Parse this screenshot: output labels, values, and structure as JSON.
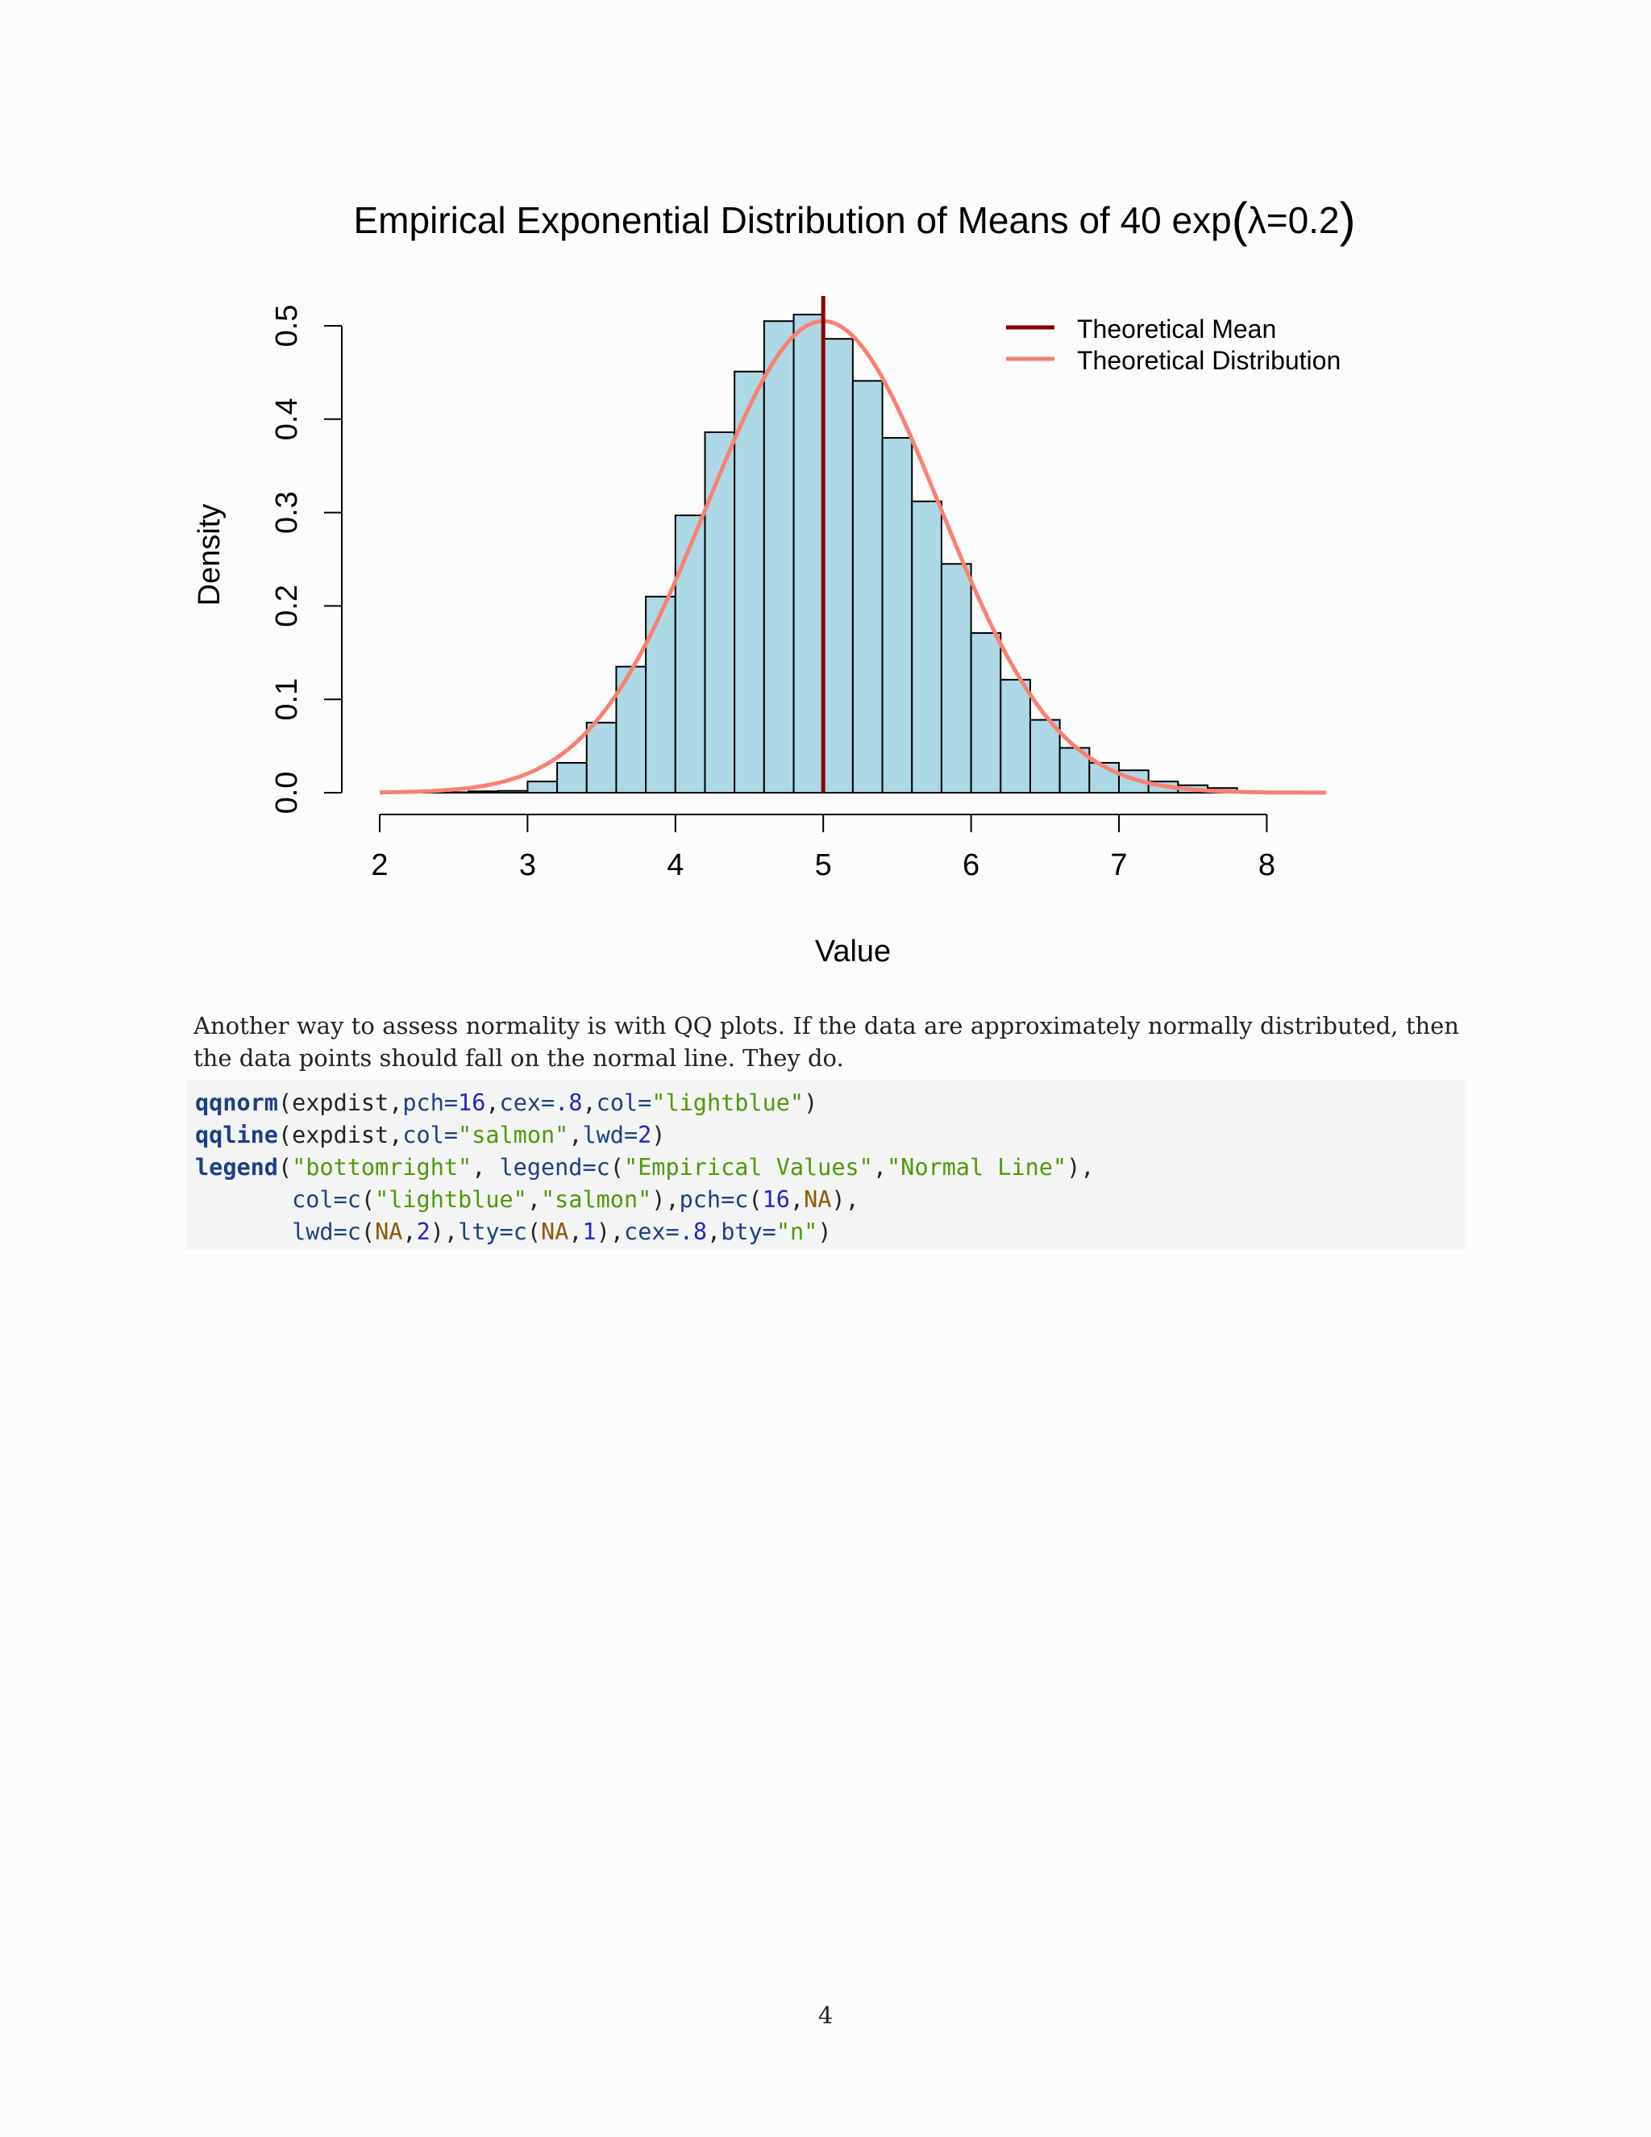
{
  "chart_data": {
    "type": "bar",
    "title_prefix": "Empirical Exponential Distribution of Means of 40 exp",
    "title_paren_open": "(",
    "title_lambda": "λ=0.2",
    "title_paren_close": ")",
    "xlabel": "Value",
    "ylabel": "Density",
    "xlim": [
      2,
      8.4
    ],
    "ylim": [
      0,
      0.5
    ],
    "x_ticks": [
      2,
      3,
      4,
      5,
      6,
      7,
      8
    ],
    "y_ticks": [
      0.0,
      0.1,
      0.2,
      0.3,
      0.4,
      0.5
    ],
    "y_tick_labels": [
      "0.0",
      "0.1",
      "0.2",
      "0.3",
      "0.4",
      "0.5"
    ],
    "bin_width": 0.2,
    "bin_starts": [
      2.2,
      2.4,
      2.6,
      2.8,
      3.0,
      3.2,
      3.4,
      3.6,
      3.8,
      4.0,
      4.2,
      4.4,
      4.6,
      4.8,
      5.0,
      5.2,
      5.4,
      5.6,
      5.8,
      6.0,
      6.2,
      6.4,
      6.6,
      6.8,
      7.0,
      7.2,
      7.4,
      7.6
    ],
    "densities": [
      0.0005,
      0.0005,
      0.0015,
      0.002,
      0.012,
      0.032,
      0.075,
      0.135,
      0.21,
      0.297,
      0.386,
      0.451,
      0.505,
      0.512,
      0.486,
      0.441,
      0.38,
      0.312,
      0.245,
      0.171,
      0.121,
      0.078,
      0.048,
      0.032,
      0.024,
      0.012,
      0.008,
      0.005
    ],
    "bar_color": "#add8e6",
    "mean_line": {
      "x": 5,
      "color": "#8b0000",
      "name": "Theoretical Mean"
    },
    "curve": {
      "mean": 5,
      "sd": 0.79,
      "x_range": [
        2,
        8.4
      ],
      "color": "#fa8072",
      "name": "Theoretical Distribution"
    },
    "legend_position": "top-right"
  },
  "prose": "Another way to assess normality is with QQ plots. If the data are approximately normally distributed, then the data points should fall on the normal line. They do.",
  "code": {
    "line1": {
      "fn": "qqnorm",
      "open": "(expdist,",
      "a1": "pch=",
      "n1": "16",
      "c1": ",",
      "a2": "cex=",
      "n2": ".8",
      "c2": ",",
      "a3": "col=",
      "s1": "\"lightblue\"",
      "close": ")"
    },
    "line2": {
      "fn": "qqline",
      "open": "(expdist,",
      "a1": "col=",
      "s1": "\"salmon\"",
      "c1": ",",
      "a2": "lwd=",
      "n1": "2",
      "close": ")"
    },
    "line3": {
      "fn": "legend",
      "open": "(",
      "s1": "\"bottomright\"",
      "c1": ", ",
      "a1": "legend=c",
      "p1": "(",
      "s2": "\"Empirical Values\"",
      "c2": ",",
      "s3": "\"Normal Line\"",
      "close": "),"
    },
    "line4": {
      "indent": "       ",
      "a1": "col=c",
      "p1": "(",
      "s1": "\"lightblue\"",
      "c1": ",",
      "s2": "\"salmon\"",
      "p2": "),",
      "a2": "pch=c",
      "p3": "(",
      "n1": "16",
      "c2": ",",
      "na1": "NA",
      "close": "),"
    },
    "line5": {
      "indent": "       ",
      "a1": "lwd=c",
      "p1": "(",
      "na1": "NA",
      "c1": ",",
      "n1": "2",
      "p2": "),",
      "a2": "lty=c",
      "p3": "(",
      "na2": "NA",
      "c2": ",",
      "n2": "1",
      "p4": "),",
      "a3": "cex=",
      "n3": ".8",
      "c3": ",",
      "a4": "bty=",
      "s1": "\"n\"",
      "close": ")"
    }
  },
  "page_number": "4"
}
